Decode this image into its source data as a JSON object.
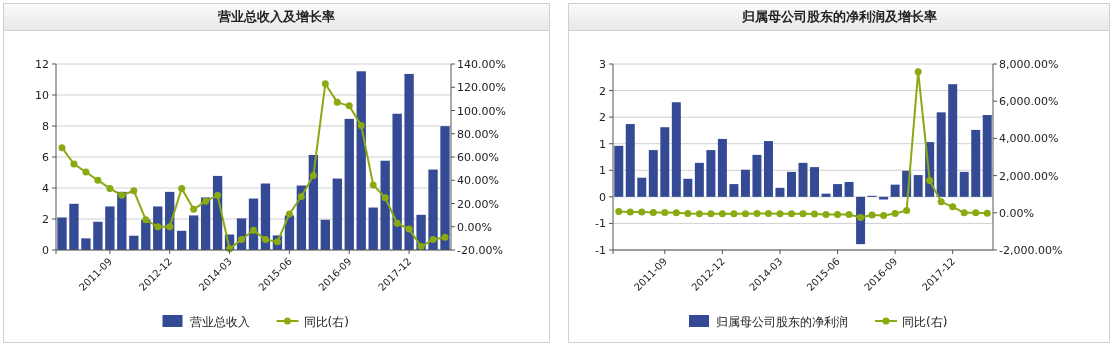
{
  "chart_data": [
    {
      "type": "bar",
      "title": "营业总收入及增长率",
      "categories": [
        null,
        null,
        null,
        null,
        "2011-09",
        null,
        null,
        null,
        null,
        "2012-12",
        null,
        null,
        null,
        null,
        "2014-03",
        null,
        null,
        null,
        null,
        "2015-06",
        null,
        null,
        null,
        null,
        "2016-09",
        null,
        null,
        null,
        null,
        "2017-12",
        null,
        null,
        null
      ],
      "series": [
        {
          "name": "营业总收入",
          "color": "#344a94",
          "values": [
            2.1,
            2.98,
            0.75,
            1.82,
            2.81,
            3.75,
            0.92,
            1.95,
            2.81,
            3.75,
            1.24,
            2.23,
            3.39,
            4.78,
            1.0,
            2.04,
            3.32,
            4.29,
            0.94,
            2.23,
            4.16,
            6.13,
            1.95,
            4.61,
            8.46,
            11.53,
            2.74,
            5.76,
            8.79,
            11.36,
            2.27,
            5.19,
            7.99
          ]
        },
        {
          "name": "同比(右)",
          "type": "line",
          "axis": "y2",
          "color": "#8aaa12",
          "values": [
            68,
            54,
            47,
            40,
            33,
            27,
            31,
            6,
            0,
            0,
            33,
            15,
            22,
            27,
            -19,
            -11,
            -3,
            -11,
            -13,
            11,
            26,
            44,
            123,
            107,
            104,
            87,
            36,
            25,
            3,
            -2,
            -17,
            -11,
            -9
          ]
        }
      ],
      "ylim": [
        0,
        12
      ],
      "yticks": [
        0,
        2,
        4,
        6,
        8,
        10,
        12
      ],
      "y2lim": [
        -20,
        140
      ],
      "y2ticks": [
        {
          "value": -20,
          "label": "-20.00%"
        },
        {
          "value": 0,
          "label": "0.00%"
        },
        {
          "value": 20,
          "label": "20.00%"
        },
        {
          "value": 40,
          "label": "40.00%"
        },
        {
          "value": 60,
          "label": "60.00%"
        },
        {
          "value": 80,
          "label": "80.00%"
        },
        {
          "value": 100,
          "label": "100.00%"
        },
        {
          "value": 120,
          "label": "120.00%"
        },
        {
          "value": 140,
          "label": "140.00%"
        }
      ],
      "grid": "y",
      "legend": "bottom",
      "marker": "circle"
    },
    {
      "type": "bar",
      "title": "归属母公司股东的净利润及增长率",
      "categories": [
        null,
        null,
        null,
        null,
        "2011-09",
        null,
        null,
        null,
        null,
        "2012-12",
        null,
        null,
        null,
        null,
        "2014-03",
        null,
        null,
        null,
        null,
        "2015-06",
        null,
        null,
        null,
        null,
        "2016-09",
        null,
        null,
        null,
        null,
        "2017-12",
        null,
        null,
        null
      ],
      "series": [
        {
          "name": "归属母公司股东的净利润",
          "color": "#344a94",
          "values": [
            0.96,
            1.37,
            0.36,
            0.88,
            1.31,
            1.78,
            0.34,
            0.64,
            0.88,
            1.09,
            0.24,
            0.51,
            0.79,
            1.05,
            0.17,
            0.47,
            0.64,
            0.56,
            0.06,
            0.24,
            0.28,
            -0.89,
            0.02,
            -0.05,
            0.23,
            0.49,
            0.41,
            1.03,
            1.59,
            2.12,
            0.47,
            1.26,
            1.54
          ]
        },
        {
          "name": "同比(右)",
          "type": "line",
          "axis": "y2",
          "color": "#8aaa12",
          "values": [
            70,
            40,
            40,
            20,
            20,
            0,
            -40,
            -50,
            -50,
            -50,
            -50,
            -50,
            -40,
            -40,
            -50,
            -50,
            -50,
            -70,
            -90,
            -90,
            -90,
            -250,
            -120,
            -140,
            -40,
            120,
            7590,
            1730,
            590,
            320,
            0,
            0,
            -20
          ]
        }
      ],
      "ylim": [
        -1,
        2.5
      ],
      "yticks": [
        {
          "value": -1,
          "label": "-1"
        },
        {
          "value": -0.5,
          "label": "-1"
        },
        0,
        {
          "value": 0.5,
          "label": "1"
        },
        1,
        {
          "value": 1.5,
          "label": "2"
        },
        2,
        {
          "value": 2.5,
          "label": "3"
        }
      ],
      "y2lim": [
        -2000,
        8000
      ],
      "y2ticks": [
        {
          "value": -2000,
          "label": "-2,000.00%"
        },
        {
          "value": 0,
          "label": "0.00%"
        },
        {
          "value": 2000,
          "label": "2,000.00%"
        },
        {
          "value": 4000,
          "label": "4,000.00%"
        },
        {
          "value": 6000,
          "label": "6,000.00%"
        },
        {
          "value": 8000,
          "label": "8,000.00%"
        }
      ],
      "grid": "y",
      "legend": "bottom",
      "marker": "circle"
    }
  ]
}
